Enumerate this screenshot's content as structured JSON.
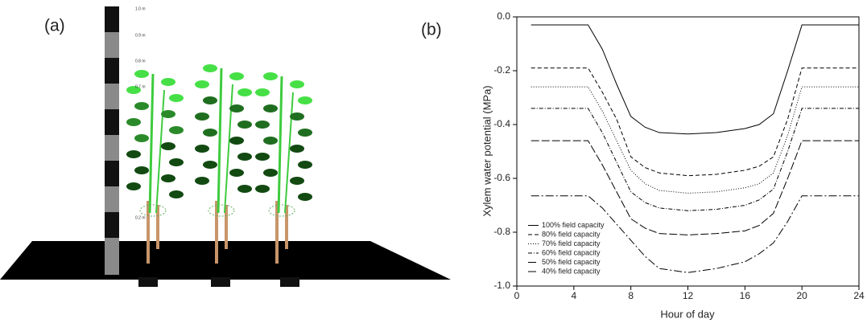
{
  "panel_a": {
    "label": "(a)",
    "scale_labels": [
      "1.0 m",
      "0.9 m",
      "0.8 m",
      "0.7 m",
      "0.2 m"
    ]
  },
  "chart_data": {
    "type": "line",
    "label": "(b)",
    "xlabel": "Hour of day",
    "ylabel": "Xylem water potential (MPa)",
    "x": [
      1,
      5,
      6,
      7,
      8,
      9,
      10,
      12,
      14,
      16,
      17,
      18,
      19,
      20,
      24
    ],
    "series": [
      {
        "name": "100% field capacity",
        "color": "#000000",
        "dash": "none",
        "values": [
          -0.03,
          -0.03,
          -0.12,
          -0.25,
          -0.37,
          -0.41,
          -0.43,
          -0.435,
          -0.43,
          -0.415,
          -0.4,
          -0.36,
          -0.2,
          -0.03,
          -0.03
        ]
      },
      {
        "name": "80% field capacity",
        "color": "#000000",
        "dash": "5,3",
        "values": [
          -0.19,
          -0.19,
          -0.28,
          -0.38,
          -0.52,
          -0.56,
          -0.58,
          -0.59,
          -0.585,
          -0.57,
          -0.555,
          -0.52,
          -0.38,
          -0.19,
          -0.19
        ]
      },
      {
        "name": "70% field capacity",
        "color": "#000000",
        "dash": "1,2",
        "values": [
          -0.26,
          -0.26,
          -0.35,
          -0.46,
          -0.57,
          -0.62,
          -0.645,
          -0.655,
          -0.65,
          -0.635,
          -0.62,
          -0.58,
          -0.44,
          -0.26,
          -0.26
        ]
      },
      {
        "name": "60% field capacity",
        "color": "#000000",
        "dash": "5,2,1,2",
        "values": [
          -0.34,
          -0.34,
          -0.43,
          -0.54,
          -0.65,
          -0.69,
          -0.71,
          -0.72,
          -0.715,
          -0.7,
          -0.68,
          -0.64,
          -0.5,
          -0.34,
          -0.34
        ]
      },
      {
        "name": "50% field capacity",
        "color": "#000000",
        "dash": "10,3",
        "values": [
          -0.46,
          -0.46,
          -0.55,
          -0.65,
          -0.75,
          -0.785,
          -0.805,
          -0.81,
          -0.805,
          -0.795,
          -0.775,
          -0.73,
          -0.6,
          -0.46,
          -0.46
        ]
      },
      {
        "name": "40% field capacity",
        "color": "#000000",
        "dash": "10,3,2,3",
        "values": [
          -0.665,
          -0.665,
          -0.71,
          -0.77,
          -0.83,
          -0.89,
          -0.935,
          -0.95,
          -0.935,
          -0.91,
          -0.88,
          -0.84,
          -0.76,
          -0.665,
          -0.665
        ]
      }
    ],
    "xlim": [
      0,
      24
    ],
    "xticks": [
      0,
      4,
      8,
      12,
      16,
      20,
      24
    ],
    "ylim": [
      -1.0,
      0.0
    ],
    "yticks": [
      {
        "value": -1.0,
        "label": "-1.0"
      },
      -0.8,
      -0.6,
      -0.4,
      -0.2,
      {
        "value": 0.0,
        "label": "0.0"
      }
    ],
    "legend": "lower left"
  }
}
